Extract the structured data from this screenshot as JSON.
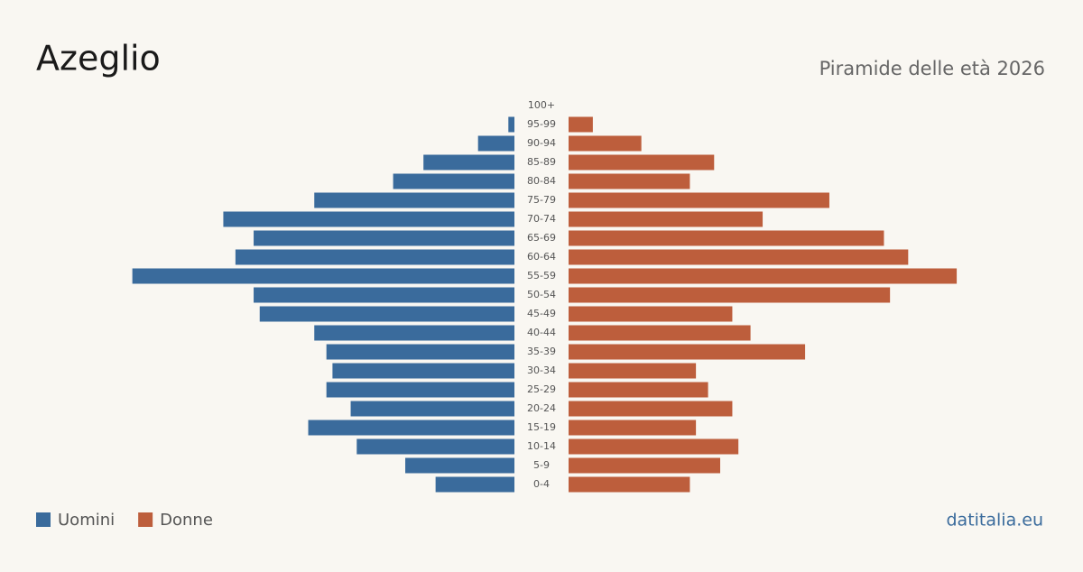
{
  "chart_data": {
    "type": "pyramid",
    "title": "Azeglio",
    "subtitle": "Piramide delle età 2026",
    "source": "datitalia.eu",
    "categories": [
      "100+",
      "95-99",
      "90-94",
      "85-89",
      "80-84",
      "75-79",
      "70-74",
      "65-69",
      "60-64",
      "55-59",
      "50-54",
      "45-49",
      "40-44",
      "35-39",
      "30-34",
      "25-29",
      "20-24",
      "15-19",
      "10-14",
      "5-9",
      "0-4"
    ],
    "series": [
      {
        "name": "Uomini",
        "color": "#3a6b9c",
        "values": [
          0,
          1,
          6,
          15,
          20,
          33,
          48,
          43,
          46,
          63,
          43,
          42,
          33,
          31,
          30,
          31,
          27,
          34,
          26,
          18,
          13
        ]
      },
      {
        "name": "Donne",
        "color": "#bd5e3c",
        "values": [
          0,
          4,
          12,
          24,
          20,
          43,
          32,
          52,
          56,
          64,
          53,
          27,
          30,
          39,
          21,
          23,
          27,
          21,
          28,
          25,
          20
        ]
      }
    ]
  }
}
